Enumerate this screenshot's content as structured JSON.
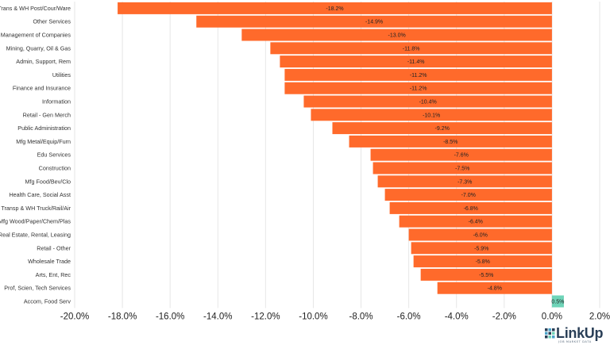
{
  "chart_data": {
    "type": "bar",
    "orientation": "horizontal",
    "categories": [
      "Trans & WH Post/Cour/Ware",
      "Other Services",
      "Management of Companies",
      "Mining, Quarry, Oil & Gas",
      "Admin, Support, Rem",
      "Utilities",
      "Finance and Insurance",
      "Information",
      "Retail - Gen Merch",
      "Public Administration",
      "Mfg Metal/Equip/Furn",
      "Edu Services",
      "Construction",
      "Mfg Food/Bev/Clo",
      "Health Care, Social Asst",
      "Transp & WH Truck/Rail/Air",
      "Mfg Wood/Paper/Chem/Plas",
      "Real Estate, Rental, Leasing",
      "Retail - Other",
      "Wholesale Trade",
      "Arts, Ent, Rec",
      "Prof, Scien, Tech Services",
      "Accom, Food Serv"
    ],
    "values": [
      -18.2,
      -14.9,
      -13.0,
      -11.8,
      -11.4,
      -11.2,
      -11.2,
      -10.4,
      -10.1,
      -9.2,
      -8.5,
      -7.6,
      -7.5,
      -7.3,
      -7.0,
      -6.8,
      -6.4,
      -6.0,
      -5.9,
      -5.8,
      -5.5,
      -4.8,
      0.5
    ],
    "value_labels": [
      "-18.2%",
      "-14.9%",
      "-13.0%",
      "-11.8%",
      "-11.4%",
      "-11.2%",
      "-11.2%",
      "-10.4%",
      "-10.1%",
      "-9.2%",
      "-8.5%",
      "-7.6%",
      "-7.5%",
      "-7.3%",
      "-7.0%",
      "-6.8%",
      "-6.4%",
      "-6.0%",
      "-5.9%",
      "-5.8%",
      "-5.5%",
      "-4.8%",
      "0.5%"
    ],
    "x_ticks": [
      -20,
      -18,
      -16,
      -14,
      -12,
      -10,
      -8,
      -6,
      -4,
      -2,
      0,
      2
    ],
    "x_tick_labels": [
      "-20.0%",
      "-18.0%",
      "-16.0%",
      "-14.0%",
      "-12.0%",
      "-10.0%",
      "-8.0%",
      "-6.0%",
      "-4.0%",
      "-2.0%",
      "0.0%",
      "2.0%"
    ],
    "xlim": [
      -20,
      2
    ],
    "grid": true,
    "colors": {
      "negative": "#ff6a2b",
      "positive": "#6fd4b8"
    }
  },
  "logo": {
    "name": "LinkUp",
    "tagline": "JOB MARKET DATA"
  }
}
